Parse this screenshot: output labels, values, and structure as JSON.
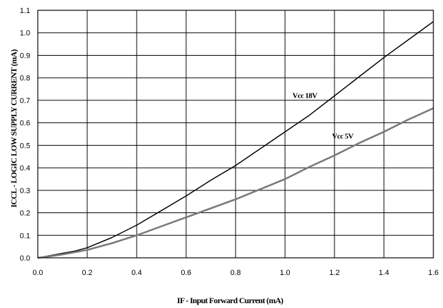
{
  "chart_data": {
    "type": "line",
    "title": "",
    "xlabel": "IF - Input Forward Current (mA)",
    "ylabel": "ICCL - LOGIC LOW SUPPLY CURRENT (mA)",
    "xlim": [
      0.0,
      1.6
    ],
    "ylim": [
      0.0,
      1.1
    ],
    "xticks": [
      0.0,
      0.2,
      0.4,
      0.6,
      0.8,
      1.0,
      1.2,
      1.4,
      1.6
    ],
    "xtick_labels": [
      "0.0",
      "0.2",
      "0.4",
      "0.6",
      "0.8",
      "1.0",
      "1.2",
      "1.4",
      "1.6"
    ],
    "yticks": [
      0.0,
      0.1,
      0.2,
      0.3,
      0.4,
      0.5,
      0.6,
      0.7,
      0.8,
      0.9,
      1.0,
      1.1
    ],
    "ytick_labels": [
      "0.0",
      "0.1",
      "0.2",
      "0.3",
      "0.4",
      "0.5",
      "0.6",
      "0.7",
      "0.8",
      "0.9",
      "1.0",
      "1.1"
    ],
    "grid": true,
    "series": [
      {
        "name": "Vcc 18V",
        "color": "#000000",
        "x": [
          0.0,
          0.05,
          0.1,
          0.15,
          0.2,
          0.3,
          0.4,
          0.5,
          0.6,
          0.7,
          0.8,
          0.9,
          1.0,
          1.1,
          1.2,
          1.3,
          1.4,
          1.5,
          1.6
        ],
        "y": [
          0.0,
          0.01,
          0.02,
          0.03,
          0.045,
          0.09,
          0.145,
          0.21,
          0.275,
          0.345,
          0.41,
          0.485,
          0.56,
          0.635,
          0.72,
          0.805,
          0.89,
          0.97,
          1.05
        ],
        "label_at": [
          1.03,
          0.71
        ]
      },
      {
        "name": "Vcc 5V",
        "color": "#7a7a7a",
        "x": [
          0.0,
          0.05,
          0.1,
          0.2,
          0.3,
          0.4,
          0.5,
          0.6,
          0.7,
          0.8,
          0.9,
          1.0,
          1.1,
          1.2,
          1.3,
          1.4,
          1.5,
          1.6
        ],
        "y": [
          0.0,
          0.007,
          0.015,
          0.035,
          0.065,
          0.1,
          0.14,
          0.18,
          0.22,
          0.26,
          0.305,
          0.35,
          0.405,
          0.455,
          0.51,
          0.56,
          0.615,
          0.665
        ],
        "label_at": [
          1.19,
          0.53
        ]
      }
    ]
  }
}
